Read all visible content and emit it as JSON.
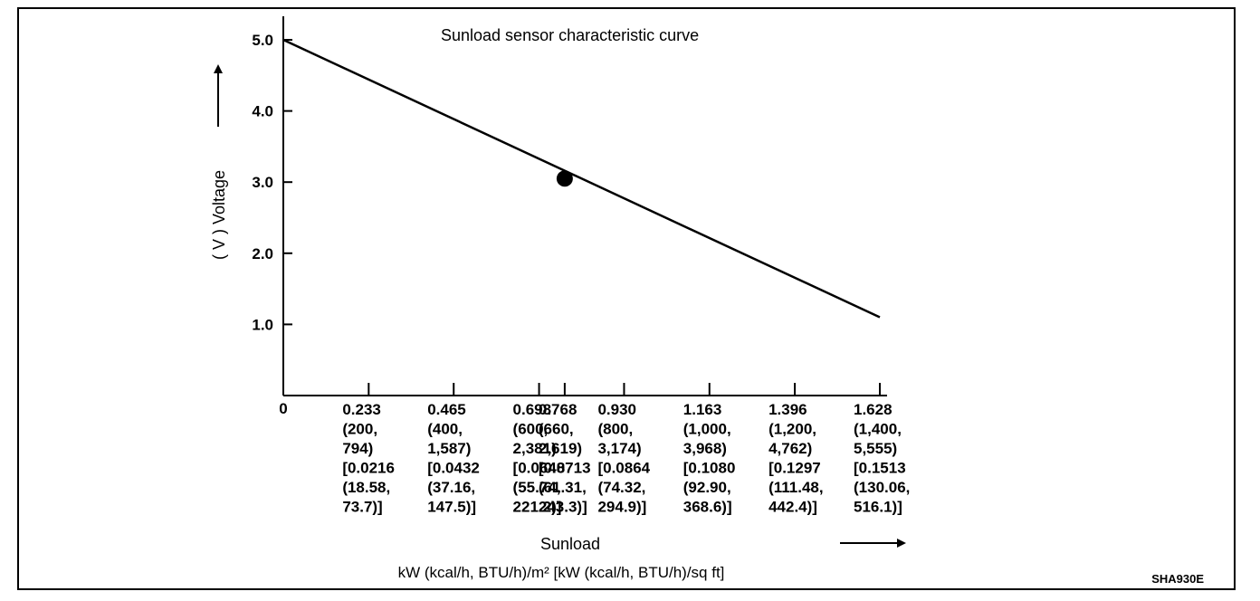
{
  "chart_data": {
    "type": "line",
    "title": "Sunload sensor characteristic curve",
    "ylabel": "( V )  Voltage",
    "xlabel": "Sunload",
    "x_units": "kW (kcal/h, BTU/h)/m²  [kW (kcal/h, BTU/h)/sq ft]",
    "y_ticks": [
      "1.0",
      "2.0",
      "3.0",
      "4.0",
      "5.0"
    ],
    "y_tick_values": [
      1.0,
      2.0,
      3.0,
      4.0,
      5.0
    ],
    "ylim": [
      0,
      5.3
    ],
    "xlim": [
      0,
      1.72
    ],
    "x_origin_label": "0",
    "x_ticks": [
      {
        "value": 0.233,
        "lines": [
          "0.233",
          "(200,",
          "794)",
          "[0.0216",
          "(18.58,",
          "73.7)]"
        ]
      },
      {
        "value": 0.465,
        "lines": [
          "0.465",
          "(400,",
          "1,587)",
          "[0.0432",
          "(37.16,",
          "147.5)]"
        ]
      },
      {
        "value": 0.698,
        "lines": [
          "0.698",
          "(600,",
          "2,381)",
          "[0.0648",
          "(55.74,",
          "221.2)]"
        ]
      },
      {
        "value": 0.768,
        "lines": [
          "0.768",
          "(660,",
          "2,619)",
          "[0.0713",
          "(61.31,",
          "243.3)]"
        ]
      },
      {
        "value": 0.93,
        "lines": [
          "0.930",
          "(800,",
          "3,174)",
          "[0.0864",
          "(74.32,",
          "294.9)]"
        ]
      },
      {
        "value": 1.163,
        "lines": [
          "1.163",
          "(1,000,",
          "3,968)",
          "[0.1080",
          "(92.90,",
          "368.6)]"
        ]
      },
      {
        "value": 1.396,
        "lines": [
          "1.396",
          "(1,200,",
          "4,762)",
          "[0.1297",
          "(111.48,",
          "442.4)]"
        ]
      },
      {
        "value": 1.628,
        "lines": [
          "1.628",
          "(1,400,",
          "5,555)",
          "[0.1513",
          "(130.06,",
          "516.1)]"
        ]
      }
    ],
    "series": [
      {
        "x": [
          0,
          1.628
        ],
        "y": [
          5.0,
          1.1
        ]
      }
    ],
    "marker": {
      "x": 0.768,
      "y": 3.05
    },
    "grid": false,
    "figure_code": "SHA930E"
  }
}
